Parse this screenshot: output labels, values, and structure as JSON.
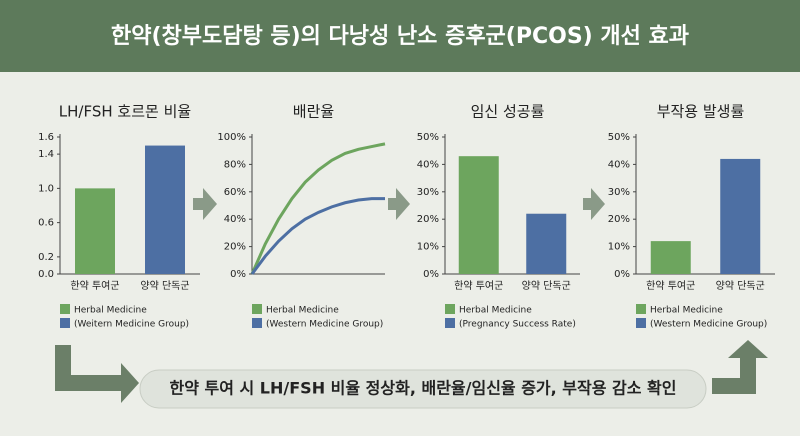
{
  "title": "한약(창부도담탕 등)의 다낭성 난소 증후군(PCOS) 개선 효과",
  "chart_data": [
    {
      "type": "bar",
      "title": "LH/FSH 호르몬 비율",
      "categories": [
        "한약 투여군",
        "양약 단독군"
      ],
      "values": [
        1.0,
        1.5
      ],
      "colors": [
        "#6da55e",
        "#4d6fa3"
      ],
      "legend": [
        "Herbal Medicine",
        "(Weitern Medicine Group)"
      ],
      "ylim": [
        0,
        1.6
      ],
      "yticks": [
        {
          "value": 0,
          "label": "0.0"
        },
        0.2,
        0.6,
        {
          "value": 1,
          "label": "1.0"
        },
        1.4,
        1.6
      ]
    },
    {
      "type": "line",
      "title": "배란율",
      "categories": [
        null,
        null,
        null,
        null,
        null,
        null,
        null,
        null,
        null,
        null,
        null
      ],
      "series": [
        {
          "name": "Herbal Medicine",
          "color": "#6da55e",
          "values": [
            0,
            22,
            40,
            55,
            67,
            76,
            83,
            88,
            91,
            93,
            95
          ]
        },
        {
          "name": "(Western Medicine Group)",
          "color": "#4d6fa3",
          "values": [
            0,
            13,
            24,
            33,
            40,
            45,
            49,
            52,
            54,
            55,
            55
          ]
        }
      ],
      "ylim": [
        0,
        100
      ],
      "yticks": [
        {
          "value": 0,
          "label": "0%"
        },
        {
          "value": 20,
          "label": "20%"
        },
        {
          "value": 40,
          "label": "40%"
        },
        {
          "value": 60,
          "label": "60%"
        },
        {
          "value": 80,
          "label": "80%"
        },
        {
          "value": 100,
          "label": "100%"
        }
      ]
    },
    {
      "type": "bar",
      "title": "임신 성공률",
      "categories": [
        "한약 투여군",
        "양약 단독군"
      ],
      "values": [
        43,
        22
      ],
      "colors": [
        "#6da55e",
        "#4d6fa3"
      ],
      "legend": [
        "Herbal Medicine",
        "(Pregnancy Success Rate)"
      ],
      "ylim": [
        0,
        50
      ],
      "yticks": [
        {
          "value": 0,
          "label": "0%"
        },
        {
          "value": 10,
          "label": "10%"
        },
        {
          "value": 20,
          "label": "20%"
        },
        {
          "value": 30,
          "label": "30%"
        },
        {
          "value": 40,
          "label": "40%"
        },
        {
          "value": 50,
          "label": "50%"
        }
      ]
    },
    {
      "type": "bar",
      "title": "부작용 발생률",
      "categories": [
        "한약 투여군",
        "양약 단독군"
      ],
      "values": [
        12,
        42
      ],
      "colors": [
        "#6da55e",
        "#4d6fa3"
      ],
      "legend": [
        "Herbal Medicine",
        "(Western Medicine Group)"
      ],
      "ylim": [
        0,
        50
      ],
      "yticks": [
        {
          "value": 0,
          "label": "0%"
        },
        {
          "value": 10,
          "label": "10%"
        },
        {
          "value": 20,
          "label": "20%"
        },
        {
          "value": 30,
          "label": "30%"
        },
        {
          "value": 40,
          "label": "40%"
        },
        {
          "value": 50,
          "label": "50%"
        }
      ]
    }
  ],
  "summary": "한약 투여 시 LH/FSH 비율 정상화, 배란율/임신율 증가, 부작용 감소 확인"
}
